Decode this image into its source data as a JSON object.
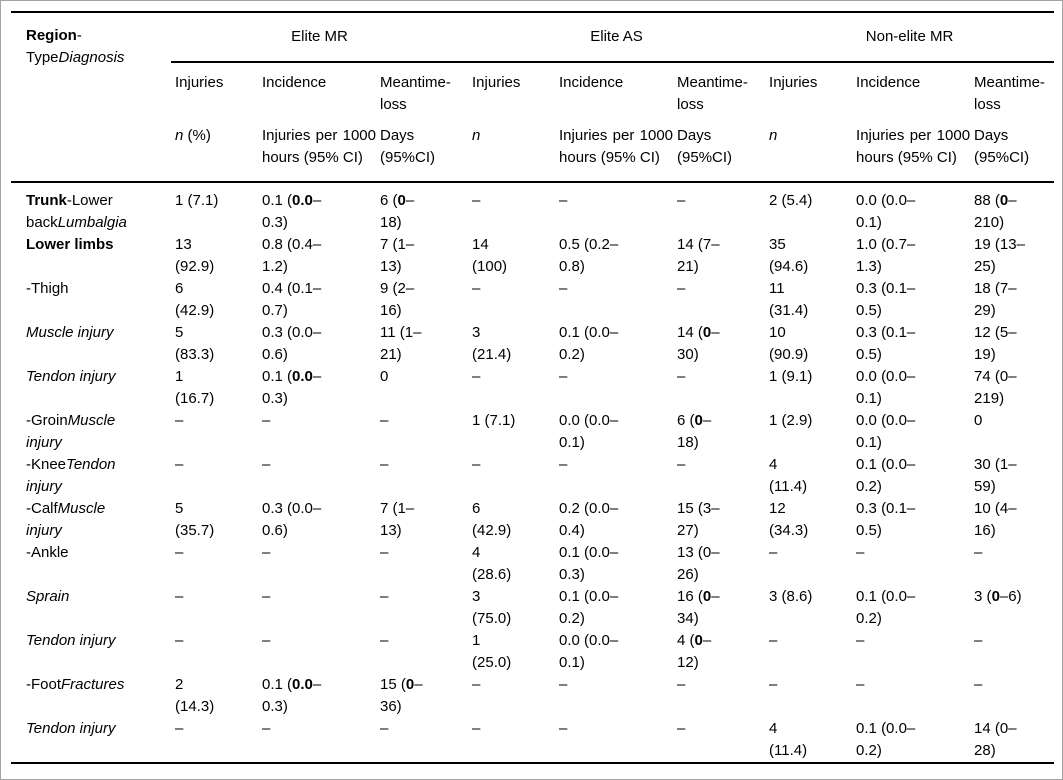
{
  "table": {
    "corner_label": [
      {
        "t": "Region",
        "b": true
      },
      {
        "t": "-"
      },
      {
        "t": "Type"
      },
      {
        "t": "Diagnosis",
        "i": true
      }
    ],
    "groups": [
      {
        "label": "Elite MR",
        "columns": [
          {
            "title": "Injuries",
            "unit": [
              {
                "t": "n",
                "i": true
              },
              {
                "t": " (%)"
              }
            ]
          },
          {
            "title": "Incidence",
            "unit": "Injuries per 1000 hours (95% CI)"
          },
          {
            "title": "Meantime-loss",
            "unit": "Days (95%CI)"
          }
        ]
      },
      {
        "label": "Elite AS",
        "columns": [
          {
            "title": "Injuries",
            "unit": [
              {
                "t": "n",
                "i": true
              }
            ]
          },
          {
            "title": "Incidence",
            "unit": "Injuries per 1000 hours (95% CI)"
          },
          {
            "title": "Meantime-loss",
            "unit": "Days (95%CI)"
          }
        ]
      },
      {
        "label": "Non-elite MR",
        "columns": [
          {
            "title": "Injuries",
            "unit": [
              {
                "t": "n",
                "i": true
              }
            ]
          },
          {
            "title": "Incidence",
            "unit": "Injuries per 1000 hours (95% CI)"
          },
          {
            "title": "Meantime-loss",
            "unit": "Days (95%CI)"
          }
        ]
      }
    ],
    "rows": [
      {
        "label": [
          {
            "t": "Trunk",
            "b": true
          },
          {
            "t": "-Lower back"
          },
          {
            "t": "Lumbalgia",
            "i": true
          }
        ],
        "cells": [
          "1 (7.1)",
          [
            {
              "t": "0.1 ("
            },
            {
              "t": "0.0",
              "b": true
            },
            {
              "t": "–0.3)"
            }
          ],
          [
            {
              "t": "6 ("
            },
            {
              "t": "0",
              "b": true
            },
            {
              "t": "–18)"
            }
          ],
          "–",
          "–",
          "–",
          "2 (5.4)",
          "0.0 (0.0–0.1)",
          [
            {
              "t": "88 ("
            },
            {
              "t": "0",
              "b": true
            },
            {
              "t": "–210)"
            }
          ]
        ]
      },
      {
        "label": [
          {
            "t": "Lower limbs",
            "b": true
          }
        ],
        "cells": [
          "13 (92.9)",
          "0.8 (0.4–1.2)",
          "7 (1–13)",
          "14 (100)",
          "0.5 (0.2–0.8)",
          "14 (7–21)",
          "35 (94.6)",
          "1.0 (0.7–1.3)",
          "19 (13–25)"
        ]
      },
      {
        "label": [
          {
            "t": "-Thigh"
          }
        ],
        "cells": [
          "6 (42.9)",
          "0.4 (0.1–0.7)",
          "9 (2–16)",
          "–",
          "–",
          "–",
          "11 (31.4)",
          "0.3 (0.1–0.5)",
          "18 (7–29)"
        ]
      },
      {
        "label": [
          {
            "t": "Muscle injury",
            "i": true
          }
        ],
        "cells": [
          "5 (83.3)",
          "0.3 (0.0–0.6)",
          "11 (1–21)",
          "3 (21.4)",
          "0.1 (0.0–0.2)",
          [
            {
              "t": "14 ("
            },
            {
              "t": "0",
              "b": true
            },
            {
              "t": "–30)"
            }
          ],
          "10 (90.9)",
          "0.3 (0.1–0.5)",
          "12 (5–19)"
        ]
      },
      {
        "label": [
          {
            "t": "Tendon injury",
            "i": true
          }
        ],
        "cells": [
          "1 (16.7)",
          [
            {
              "t": "0.1 ("
            },
            {
              "t": "0.0",
              "b": true
            },
            {
              "t": "–0.3)"
            }
          ],
          "0",
          "–",
          "–",
          "–",
          "1 (9.1)",
          "0.0 (0.0–0.1)",
          "74 (0–219)"
        ]
      },
      {
        "label": [
          {
            "t": "-Groin"
          },
          {
            "t": "Muscle injury",
            "i": true
          }
        ],
        "cells": [
          "–",
          "–",
          "–",
          "1 (7.1)",
          "0.0 (0.0–0.1)",
          [
            {
              "t": "6 ("
            },
            {
              "t": "0",
              "b": true
            },
            {
              "t": "–18)"
            }
          ],
          "1 (2.9)",
          "0.0 (0.0–0.1)",
          "0"
        ]
      },
      {
        "label": [
          {
            "t": "-Knee"
          },
          {
            "t": "Tendon injury",
            "i": true
          }
        ],
        "cells": [
          "–",
          "–",
          "–",
          "–",
          "–",
          "–",
          "4 (11.4)",
          "0.1 (0.0–0.2)",
          "30 (1–59)"
        ]
      },
      {
        "label": [
          {
            "t": "-Calf"
          },
          {
            "t": "Muscle injury",
            "i": true
          }
        ],
        "cells": [
          "5 (35.7)",
          "0.3 (0.0–0.6)",
          "7 (1–13)",
          "6 (42.9)",
          "0.2 (0.0–0.4)",
          "15 (3–27)",
          "12 (34.3)",
          "0.3 (0.1–0.5)",
          "10 (4–16)"
        ]
      },
      {
        "label": [
          {
            "t": "-Ankle"
          }
        ],
        "cells": [
          "–",
          "–",
          "–",
          "4 (28.6)",
          "0.1 (0.0–0.3)",
          "13 (0–26)",
          "–",
          "–",
          "–"
        ]
      },
      {
        "label": [
          {
            "t": "Sprain",
            "i": true
          }
        ],
        "cells": [
          "–",
          "–",
          "–",
          "3 (75.0)",
          "0.1 (0.0–0.2)",
          [
            {
              "t": "16 ("
            },
            {
              "t": "0",
              "b": true
            },
            {
              "t": "–34)"
            }
          ],
          "3 (8.6)",
          "0.1 (0.0–0.2)",
          [
            {
              "t": "3 ("
            },
            {
              "t": "0",
              "b": true
            },
            {
              "t": "–6)"
            }
          ]
        ]
      },
      {
        "label": [
          {
            "t": "Tendon injury",
            "i": true
          }
        ],
        "cells": [
          "–",
          "–",
          "–",
          "1 (25.0)",
          "0.0 (0.0–0.1)",
          [
            {
              "t": "4 ("
            },
            {
              "t": "0",
              "b": true
            },
            {
              "t": "–12)"
            }
          ],
          "–",
          "–",
          "–"
        ]
      },
      {
        "label": [
          {
            "t": "-Foot"
          },
          {
            "t": "Fractures",
            "i": true
          }
        ],
        "cells": [
          "2 (14.3)",
          [
            {
              "t": "0.1 ("
            },
            {
              "t": "0.0",
              "b": true
            },
            {
              "t": "–0.3)"
            }
          ],
          [
            {
              "t": "15 ("
            },
            {
              "t": "0",
              "b": true
            },
            {
              "t": "–36)"
            }
          ],
          "–",
          "–",
          "–",
          "–",
          "–",
          "–"
        ]
      },
      {
        "label": [
          {
            "t": "Tendon injury",
            "i": true
          }
        ],
        "cells": [
          "–",
          "–",
          "–",
          "–",
          "–",
          "–",
          "4 (11.4)",
          "0.1 (0.0–0.2)",
          "14 (0–28)"
        ]
      }
    ]
  }
}
